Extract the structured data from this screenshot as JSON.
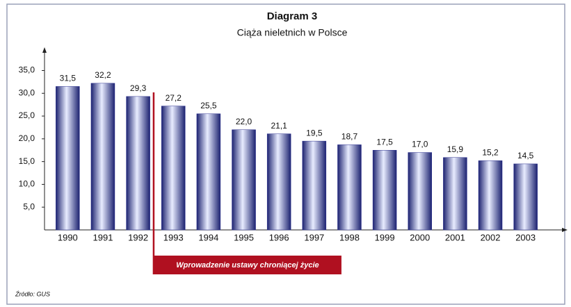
{
  "chart_data": {
    "type": "bar",
    "title": "Diagram 3",
    "subtitle": "Ciąża nieletnich w Polsce",
    "categories": [
      "1990",
      "1991",
      "1992",
      "1993",
      "1994",
      "1995",
      "1996",
      "1997",
      "1998",
      "1999",
      "2000",
      "2001",
      "2002",
      "2003"
    ],
    "values": [
      31.5,
      32.2,
      29.3,
      27.2,
      25.5,
      22.0,
      21.1,
      19.5,
      18.7,
      17.5,
      17.0,
      15.9,
      15.2,
      14.5
    ],
    "value_labels": [
      "31,5",
      "32,2",
      "29,3",
      "27,2",
      "25,5",
      "22,0",
      "21,1",
      "19,5",
      "18,7",
      "17,5",
      "17,0",
      "15,9",
      "15,2",
      "14,5"
    ],
    "color": "#2a2f8f",
    "ylim": [
      0,
      39.5
    ],
    "yticks": [
      {
        "value": 5,
        "label": "5,0"
      },
      {
        "value": 10,
        "label": "10,0"
      },
      {
        "value": 15,
        "label": "15,0"
      },
      {
        "value": 20,
        "label": "20,0"
      },
      {
        "value": 25,
        "label": "25,0"
      },
      {
        "value": 30,
        "label": "30,0"
      },
      {
        "value": 35,
        "label": "35,0"
      }
    ],
    "annotation": "Wprowadzenie ustawy chroniącej życie",
    "source": "Źródło: GUS"
  }
}
